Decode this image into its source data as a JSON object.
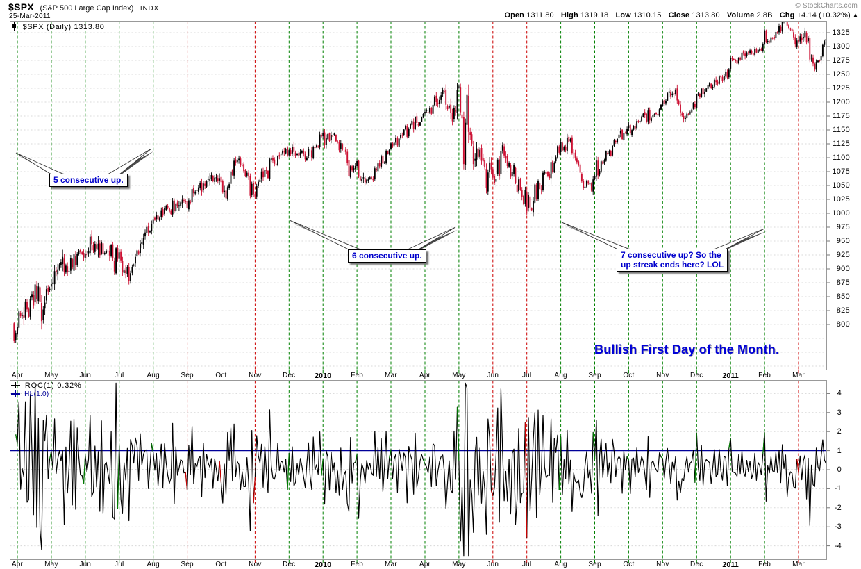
{
  "header": {
    "symbol": "$SPX",
    "description": "(S&P 500 Large Cap Index)",
    "exchange": "INDX",
    "date": "25-Mar-2011",
    "copyright": "© StockCharts.com"
  },
  "quote": {
    "open_label": "Open",
    "open": "1311.80",
    "high_label": "High",
    "high": "1319.18",
    "low_label": "Low",
    "low": "1310.15",
    "close_label": "Close",
    "close": "1313.80",
    "volume_label": "Volume",
    "volume": "2.8B",
    "chg_label": "Chg",
    "chg": "+4.14 (+0.32%)",
    "chg_dir": "▲"
  },
  "price_panel": {
    "legend_symbol": "$SPX (Daily)",
    "legend_value": "1313.80"
  },
  "roc_panel": {
    "roc_label": "ROC(1)",
    "roc_value": "0.32%",
    "hl_label": "HL(1.0)"
  },
  "annotations": {
    "note5": "5 consecutive up.",
    "note6": "6 consecutive up.",
    "note7_line1": "7 consecutive up? So the",
    "note7_line2": "up streak ends here? LOL",
    "bullish": "Bullish First Day of the Month."
  },
  "colors": {
    "bar_up": "#000000",
    "bar_down": "#cc1133",
    "month_line_up": "#008000",
    "month_line_down": "#cc0000",
    "hl_line": "#000099",
    "roc_line": "#000000",
    "grid": "#d8d8d8",
    "zero_grid": "#a8a8a8",
    "panel_border": "#999999",
    "annotation_text": "#0000cc"
  },
  "chart_data": [
    {
      "type": "candlestick",
      "title": "$SPX (Daily)",
      "symbol": "$SPX",
      "timeframe": "Daily",
      "last_price": 1313.8,
      "ohlc_today": {
        "open": 1311.8,
        "high": 1319.18,
        "low": 1310.15,
        "close": 1313.8,
        "volume": "2.8B",
        "change": 4.14,
        "change_pct": 0.32
      },
      "ylim": [
        718,
        1346
      ],
      "y_ticks": [
        1325,
        1300,
        1275,
        1250,
        1225,
        1200,
        1175,
        1150,
        1125,
        1100,
        1075,
        1050,
        1025,
        1000,
        975,
        950,
        925,
        900,
        875,
        850,
        825,
        800
      ],
      "trading_days_per_month": 21,
      "x_months": [
        {
          "label": "Apr",
          "line_color": "green"
        },
        {
          "label": "May",
          "line_color": "green"
        },
        {
          "label": "Jun",
          "line_color": "green"
        },
        {
          "label": "Jul",
          "line_color": "green"
        },
        {
          "label": "Aug",
          "line_color": "green"
        },
        {
          "label": "Sep",
          "line_color": "red"
        },
        {
          "label": "Oct",
          "line_color": "red"
        },
        {
          "label": "Nov",
          "line_color": "red"
        },
        {
          "label": "Dec",
          "line_color": "green"
        },
        {
          "label": "2010",
          "line_color": "green",
          "year": true
        },
        {
          "label": "Feb",
          "line_color": "green"
        },
        {
          "label": "Mar",
          "line_color": "green"
        },
        {
          "label": "Apr",
          "line_color": "green"
        },
        {
          "label": "May",
          "line_color": "green"
        },
        {
          "label": "Jun",
          "line_color": "red"
        },
        {
          "label": "Jul",
          "line_color": "red"
        },
        {
          "label": "Aug",
          "line_color": "green"
        },
        {
          "label": "Sep",
          "line_color": "green"
        },
        {
          "label": "Oct",
          "line_color": "green"
        },
        {
          "label": "Nov",
          "line_color": "green"
        },
        {
          "label": "Dec",
          "line_color": "green"
        },
        {
          "label": "2011",
          "line_color": "green",
          "year": true
        },
        {
          "label": "Feb",
          "line_color": "green"
        },
        {
          "label": "Mar",
          "line_color": "red"
        }
      ],
      "price_anchors": [
        [
          -3,
          793
        ],
        [
          0,
          798
        ],
        [
          5,
          835
        ],
        [
          10,
          856
        ],
        [
          15,
          842
        ],
        [
          21,
          877
        ],
        [
          26,
          903
        ],
        [
          31,
          898
        ],
        [
          37,
          918
        ],
        [
          42,
          931
        ],
        [
          47,
          939
        ],
        [
          52,
          944
        ],
        [
          58,
          923
        ],
        [
          63,
          920
        ],
        [
          67,
          883
        ],
        [
          71,
          901
        ],
        [
          75,
          940
        ],
        [
          80,
          972
        ],
        [
          84,
          987
        ],
        [
          90,
          1004
        ],
        [
          94,
          1008
        ],
        [
          100,
          1018
        ],
        [
          105,
          1020
        ],
        [
          110,
          1043
        ],
        [
          115,
          1052
        ],
        [
          120,
          1068
        ],
        [
          126,
          1054
        ],
        [
          128,
          1029
        ],
        [
          133,
          1071
        ],
        [
          137,
          1092
        ],
        [
          142,
          1070
        ],
        [
          145,
          1040
        ],
        [
          147,
          1042
        ],
        [
          152,
          1070
        ],
        [
          157,
          1093
        ],
        [
          162,
          1105
        ],
        [
          168,
          1108
        ],
        [
          174,
          1102
        ],
        [
          180,
          1110
        ],
        [
          185,
          1117
        ],
        [
          189,
          1133
        ],
        [
          193,
          1144
        ],
        [
          196,
          1148
        ],
        [
          200,
          1130
        ],
        [
          204,
          1092
        ],
        [
          210,
          1066
        ],
        [
          214,
          1058
        ],
        [
          218,
          1070
        ],
        [
          222,
          1078
        ],
        [
          226,
          1100
        ],
        [
          231,
          1118
        ],
        [
          236,
          1135
        ],
        [
          242,
          1150
        ],
        [
          247,
          1166
        ],
        [
          252,
          1178
        ],
        [
          257,
          1192
        ],
        [
          262,
          1212
        ],
        [
          266,
          1206
        ],
        [
          268,
          1188
        ],
        [
          273,
          1197
        ],
        [
          276,
          1128
        ],
        [
          278,
          1160
        ],
        [
          281,
          1120
        ],
        [
          283,
          1087
        ],
        [
          286,
          1115
        ],
        [
          290,
          1074
        ],
        [
          294,
          1070
        ],
        [
          299,
          1103
        ],
        [
          303,
          1092
        ],
        [
          307,
          1060
        ],
        [
          311,
          1031
        ],
        [
          315,
          1027
        ],
        [
          317,
          1010
        ],
        [
          322,
          1040
        ],
        [
          326,
          1078
        ],
        [
          331,
          1088
        ],
        [
          336,
          1120
        ],
        [
          340,
          1127
        ],
        [
          344,
          1110
        ],
        [
          348,
          1064
        ],
        [
          352,
          1052
        ],
        [
          355,
          1047
        ],
        [
          357,
          1080
        ],
        [
          361,
          1092
        ],
        [
          365,
          1109
        ],
        [
          369,
          1125
        ],
        [
          373,
          1142
        ],
        [
          378,
          1146
        ],
        [
          383,
          1162
        ],
        [
          388,
          1176
        ],
        [
          392,
          1172
        ],
        [
          396,
          1183
        ],
        [
          399,
          1193
        ],
        [
          403,
          1225
        ],
        [
          407,
          1213
        ],
        [
          411,
          1178
        ],
        [
          416,
          1180
        ],
        [
          420,
          1206
        ],
        [
          425,
          1222
        ],
        [
          430,
          1233
        ],
        [
          435,
          1244
        ],
        [
          440,
          1257
        ],
        [
          441,
          1272
        ],
        [
          446,
          1277
        ],
        [
          450,
          1285
        ],
        [
          455,
          1290
        ],
        [
          460,
          1296
        ],
        [
          462,
          1307
        ],
        [
          466,
          1316
        ],
        [
          470,
          1329
        ],
        [
          474,
          1343
        ],
        [
          478,
          1328
        ],
        [
          480,
          1320
        ],
        [
          483,
          1306
        ],
        [
          487,
          1320
        ],
        [
          490,
          1295
        ],
        [
          493,
          1256
        ],
        [
          496,
          1279
        ],
        [
          500,
          1313.8
        ]
      ],
      "volatility_anchors": [
        [
          -3,
          2.4
        ],
        [
          21,
          2.2
        ],
        [
          42,
          1.8
        ],
        [
          63,
          1.6
        ],
        [
          84,
          1.3
        ],
        [
          126,
          1.2
        ],
        [
          168,
          1.0
        ],
        [
          189,
          1.0
        ],
        [
          210,
          1.2
        ],
        [
          231,
          0.8
        ],
        [
          252,
          0.8
        ],
        [
          268,
          1.6
        ],
        [
          273,
          2.4
        ],
        [
          294,
          2.0
        ],
        [
          315,
          1.7
        ],
        [
          336,
          1.3
        ],
        [
          357,
          1.1
        ],
        [
          378,
          0.8
        ],
        [
          399,
          0.9
        ],
        [
          420,
          0.7
        ],
        [
          441,
          0.6
        ],
        [
          462,
          0.6
        ],
        [
          483,
          1.1
        ],
        [
          500,
          0.8
        ]
      ],
      "forced_daily_moves_pct": [
        [
          15,
          -4.2
        ],
        [
          16,
          2.6
        ],
        [
          60,
          -2.6
        ],
        [
          132,
          2.2
        ],
        [
          205,
          -2.2
        ],
        [
          278,
          4.3
        ],
        [
          282,
          -3.3
        ],
        [
          290,
          -3.4
        ],
        [
          320,
          3.0
        ],
        [
          408,
          -1.6
        ]
      ],
      "annotations_text": [
        "5 consecutive up.",
        "6 consecutive up.",
        "7 consecutive up? So the up streak ends here? LOL",
        "Bullish First Day of the Month."
      ]
    },
    {
      "type": "line",
      "title": "ROC(1)",
      "current_value_pct": 0.32,
      "ylim": [
        -4.7,
        4.7
      ],
      "y_ticks": [
        4,
        3,
        2,
        1,
        0,
        -1,
        -2,
        -3,
        -4
      ],
      "hline": {
        "label": "HL(1.0)",
        "value": 1.0,
        "color": "#000099"
      },
      "zero_line_dashed": true,
      "derivation": "1-day percent rate of change of the price series; first-trading-day-of-month segments colored like the vertical month lines"
    }
  ]
}
